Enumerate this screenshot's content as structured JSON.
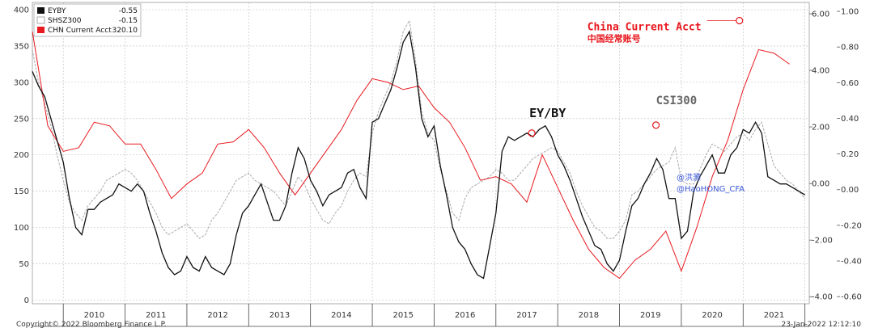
{
  "chart_data": {
    "type": "line",
    "title": "",
    "legend": {
      "placement": "top-left",
      "entries": [
        {
          "name": "EYBY",
          "value": "-0.55",
          "color": "#111111"
        },
        {
          "name": "SHSZ300",
          "value": "-0.15",
          "color": "#aaaaaa"
        },
        {
          "name": "CHN Current Acct",
          "value": "320.10",
          "color": "#e8191f"
        }
      ]
    },
    "x_axis": {
      "labels": [
        "2010",
        "2011",
        "2012",
        "2013",
        "2014",
        "2015",
        "2016",
        "2017",
        "2018",
        "2019",
        "2020",
        "2021"
      ],
      "range": [
        2009.5,
        2022.07
      ]
    },
    "y_left": {
      "range": [
        -5,
        410
      ],
      "ticks": [
        "0",
        "50",
        "100",
        "150",
        "200",
        "250",
        "300",
        "350",
        "400"
      ]
    },
    "y_right_a": {
      "range": [
        -4.25,
        6.4
      ],
      "ticks": [
        "-4.00",
        "-2.00",
        "0.00",
        "2.00",
        "4.00",
        "6.00"
      ]
    },
    "y_right_b": {
      "range": [
        -0.64,
        1.05
      ],
      "ticks": [
        "-0.60",
        "-0.40",
        "-0.20",
        "0.00",
        "0.20",
        "0.40",
        "0.60",
        "0.80",
        "1.00"
      ]
    },
    "grid": true,
    "series": [
      {
        "name": "CHN Current Acct",
        "color": "#e8191f",
        "x": [
          2009.5,
          2009.75,
          2010.0,
          2010.25,
          2010.5,
          2010.75,
          2011.0,
          2011.25,
          2011.5,
          2011.75,
          2012.0,
          2012.25,
          2012.5,
          2012.75,
          2013.0,
          2013.25,
          2013.5,
          2013.75,
          2014.0,
          2014.25,
          2014.5,
          2014.75,
          2015.0,
          2015.25,
          2015.5,
          2015.75,
          2016.0,
          2016.25,
          2016.5,
          2016.75,
          2017.0,
          2017.25,
          2017.5,
          2017.75,
          2018.0,
          2018.25,
          2018.5,
          2018.75,
          2019.0,
          2019.25,
          2019.5,
          2019.75,
          2020.0,
          2020.25,
          2020.5,
          2020.75,
          2021.0,
          2021.25,
          2021.5,
          2021.75
        ],
        "y": [
          370,
          240,
          205,
          210,
          245,
          240,
          215,
          215,
          180,
          140,
          160,
          175,
          215,
          218,
          235,
          210,
          175,
          145,
          175,
          205,
          235,
          275,
          305,
          300,
          290,
          295,
          265,
          245,
          210,
          165,
          170,
          160,
          135,
          200,
          155,
          110,
          70,
          45,
          30,
          55,
          70,
          95,
          40,
          100,
          170,
          220,
          290,
          345,
          340,
          325
        ]
      },
      {
        "name": "EYBY",
        "color": "#111111",
        "x": [
          2009.5,
          2009.6,
          2009.7,
          2009.8,
          2009.9,
          2010.0,
          2010.1,
          2010.2,
          2010.3,
          2010.4,
          2010.5,
          2010.6,
          2010.7,
          2010.8,
          2010.9,
          2011.0,
          2011.1,
          2011.2,
          2011.3,
          2011.4,
          2011.5,
          2011.6,
          2011.7,
          2011.8,
          2011.9,
          2012.0,
          2012.1,
          2012.2,
          2012.3,
          2012.4,
          2012.5,
          2012.6,
          2012.7,
          2012.8,
          2012.9,
          2013.0,
          2013.1,
          2013.2,
          2013.3,
          2013.4,
          2013.5,
          2013.6,
          2013.7,
          2013.8,
          2013.9,
          2014.0,
          2014.1,
          2014.2,
          2014.3,
          2014.4,
          2014.5,
          2014.6,
          2014.7,
          2014.8,
          2014.9,
          2015.0,
          2015.1,
          2015.2,
          2015.3,
          2015.4,
          2015.5,
          2015.6,
          2015.7,
          2015.8,
          2015.9,
          2016.0,
          2016.1,
          2016.2,
          2016.3,
          2016.4,
          2016.5,
          2016.6,
          2016.7,
          2016.8,
          2016.9,
          2017.0,
          2017.1,
          2017.2,
          2017.3,
          2017.4,
          2017.5,
          2017.6,
          2017.7,
          2017.8,
          2017.9,
          2018.0,
          2018.1,
          2018.2,
          2018.3,
          2018.4,
          2018.5,
          2018.6,
          2018.7,
          2018.8,
          2018.9,
          2019.0,
          2019.1,
          2019.2,
          2019.3,
          2019.4,
          2019.5,
          2019.6,
          2019.7,
          2019.8,
          2019.9,
          2020.0,
          2020.1,
          2020.2,
          2020.3,
          2020.4,
          2020.5,
          2020.6,
          2020.7,
          2020.8,
          2020.9,
          2021.0,
          2021.1,
          2021.2,
          2021.3,
          2021.4,
          2021.5,
          2021.6,
          2021.7,
          2021.8,
          2021.9,
          2022.0
        ],
        "y": [
          315,
          295,
          280,
          250,
          220,
          190,
          140,
          100,
          90,
          125,
          125,
          135,
          140,
          145,
          160,
          155,
          150,
          160,
          150,
          120,
          95,
          65,
          45,
          35,
          40,
          60,
          45,
          40,
          60,
          45,
          40,
          35,
          50,
          90,
          120,
          130,
          145,
          160,
          135,
          110,
          110,
          130,
          175,
          210,
          195,
          165,
          150,
          130,
          145,
          150,
          155,
          175,
          180,
          155,
          140,
          245,
          250,
          270,
          290,
          320,
          355,
          370,
          320,
          250,
          225,
          240,
          185,
          145,
          100,
          80,
          70,
          50,
          35,
          30,
          75,
          120,
          205,
          225,
          220,
          225,
          230,
          225,
          235,
          240,
          225,
          200,
          185,
          165,
          140,
          115,
          95,
          75,
          70,
          50,
          40,
          55,
          95,
          130,
          140,
          160,
          175,
          195,
          180,
          140,
          140,
          85,
          95,
          150,
          170,
          185,
          200,
          175,
          175,
          200,
          210,
          235,
          230,
          245,
          230,
          170,
          165,
          160,
          160,
          155,
          150,
          145
        ]
      },
      {
        "name": "SHSZ300",
        "color": "#aaaaaa",
        "x": [
          2009.5,
          2009.6,
          2009.7,
          2009.8,
          2009.9,
          2010.0,
          2010.1,
          2010.2,
          2010.3,
          2010.4,
          2010.5,
          2010.6,
          2010.7,
          2010.8,
          2010.9,
          2011.0,
          2011.1,
          2011.2,
          2011.3,
          2011.4,
          2011.5,
          2011.6,
          2011.7,
          2011.8,
          2011.9,
          2012.0,
          2012.1,
          2012.2,
          2012.3,
          2012.4,
          2012.5,
          2012.6,
          2012.7,
          2012.8,
          2012.9,
          2013.0,
          2013.1,
          2013.2,
          2013.3,
          2013.4,
          2013.5,
          2013.6,
          2013.7,
          2013.8,
          2013.9,
          2014.0,
          2014.1,
          2014.2,
          2014.3,
          2014.4,
          2014.5,
          2014.6,
          2014.7,
          2014.8,
          2014.9,
          2015.0,
          2015.1,
          2015.2,
          2015.3,
          2015.4,
          2015.5,
          2015.6,
          2015.7,
          2015.8,
          2015.9,
          2016.0,
          2016.1,
          2016.2,
          2016.3,
          2016.4,
          2016.5,
          2016.6,
          2016.7,
          2016.8,
          2016.9,
          2017.0,
          2017.1,
          2017.2,
          2017.3,
          2017.4,
          2017.5,
          2017.6,
          2017.7,
          2017.8,
          2017.9,
          2018.0,
          2018.1,
          2018.2,
          2018.3,
          2018.4,
          2018.5,
          2018.6,
          2018.7,
          2018.8,
          2018.9,
          2019.0,
          2019.1,
          2019.2,
          2019.3,
          2019.4,
          2019.5,
          2019.6,
          2019.7,
          2019.8,
          2019.9,
          2020.0,
          2020.1,
          2020.2,
          2020.3,
          2020.4,
          2020.5,
          2020.6,
          2020.7,
          2020.8,
          2020.9,
          2021.0,
          2021.1,
          2021.2,
          2021.3,
          2021.4,
          2021.5,
          2021.6,
          2021.7,
          2021.8,
          2021.9,
          2022.0
        ],
        "y": [
          345,
          300,
          270,
          240,
          200,
          165,
          135,
          120,
          110,
          130,
          140,
          150,
          165,
          170,
          175,
          180,
          175,
          165,
          150,
          135,
          120,
          100,
          90,
          95,
          100,
          105,
          95,
          85,
          90,
          110,
          120,
          135,
          150,
          165,
          170,
          175,
          165,
          160,
          155,
          150,
          140,
          130,
          150,
          170,
          160,
          140,
          125,
          110,
          105,
          120,
          130,
          150,
          165,
          175,
          170,
          230,
          260,
          280,
          300,
          330,
          370,
          385,
          330,
          260,
          230,
          220,
          180,
          150,
          120,
          110,
          140,
          155,
          160,
          165,
          170,
          180,
          175,
          165,
          165,
          175,
          185,
          195,
          200,
          205,
          210,
          205,
          190,
          175,
          150,
          130,
          115,
          100,
          95,
          85,
          85,
          95,
          110,
          145,
          150,
          160,
          170,
          180,
          185,
          190,
          210,
          165,
          160,
          160,
          180,
          200,
          215,
          210,
          205,
          215,
          225,
          230,
          220,
          235,
          245,
          215,
          185,
          175,
          165,
          160,
          150,
          140
        ]
      }
    ],
    "annotations": [
      {
        "text": "EY/BY",
        "x": 2017.58,
        "y": 230,
        "color": "#111111"
      },
      {
        "text": "CSI300",
        "x": 2019.59,
        "y": 241,
        "color": "#666666"
      },
      {
        "text": "China Current Acct",
        "cn_text": "中国经常账号",
        "x": 2020.94,
        "y": 385,
        "color": "#e8191f"
      }
    ],
    "watermark": [
      "@洪灏",
      "@HaoHONG_CFA"
    ]
  },
  "footer": {
    "copyright": "Copyright© 2022 Bloomberg Finance L.P.",
    "timestamp": "23-Jan-2022 12:12:10"
  }
}
